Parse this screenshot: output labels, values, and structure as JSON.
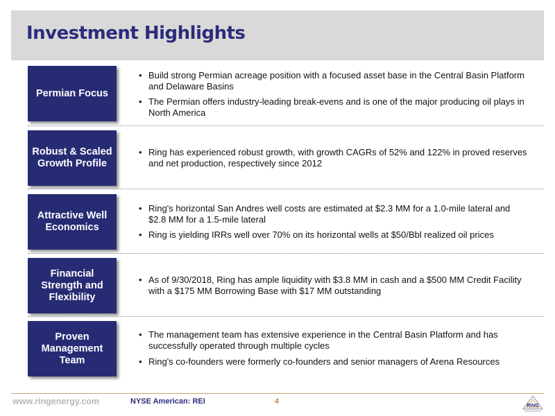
{
  "slide": {
    "title": "Investment Highlights"
  },
  "highlights": [
    {
      "label": "Permian Focus",
      "bullets": [
        "Build strong Permian acreage position with a focused asset base in the Central Basin Platform and Delaware Basins",
        "The Permian offers industry-leading break-evens and is one of the major producing oil plays in North America"
      ]
    },
    {
      "label": "Robust & Scaled Growth Profile",
      "bullets": [
        "Ring has experienced robust growth, with growth CAGRs of 52% and 122% in proved reserves and net production, respectively since 2012"
      ]
    },
    {
      "label": "Attractive Well Economics",
      "bullets": [
        "Ring's horizontal San Andres well costs are estimated at $2.3 MM for a 1.0-mile lateral and $2.8 MM for a 1.5-mile lateral",
        "Ring is yielding IRRs well over 70% on its horizontal wells at $50/Bbl realized oil prices"
      ]
    },
    {
      "label": "Financial Strength and Flexibility",
      "bullets": [
        "As of 9/30/2018, Ring has ample liquidity with $3.8 MM in cash and a $500 MM Credit Facility with a $175 MM Borrowing Base with $17 MM outstanding"
      ]
    },
    {
      "label": "Proven Management Team",
      "bullets": [
        "The management team has extensive experience in the Central Basin Platform and has successfully operated through multiple cycles",
        "Ring's co-founders were formerly co-founders and senior managers of Arena Resources"
      ]
    }
  ],
  "footer": {
    "url": "www.ringenergy.com",
    "ticker": "NYSE American: REI",
    "page": "4",
    "logo_text": "RING"
  },
  "colors": {
    "title": "#2c2c7c",
    "label_box": "#272b73",
    "footer_rule": "#c9a46a",
    "page_number": "#c58b3a"
  }
}
